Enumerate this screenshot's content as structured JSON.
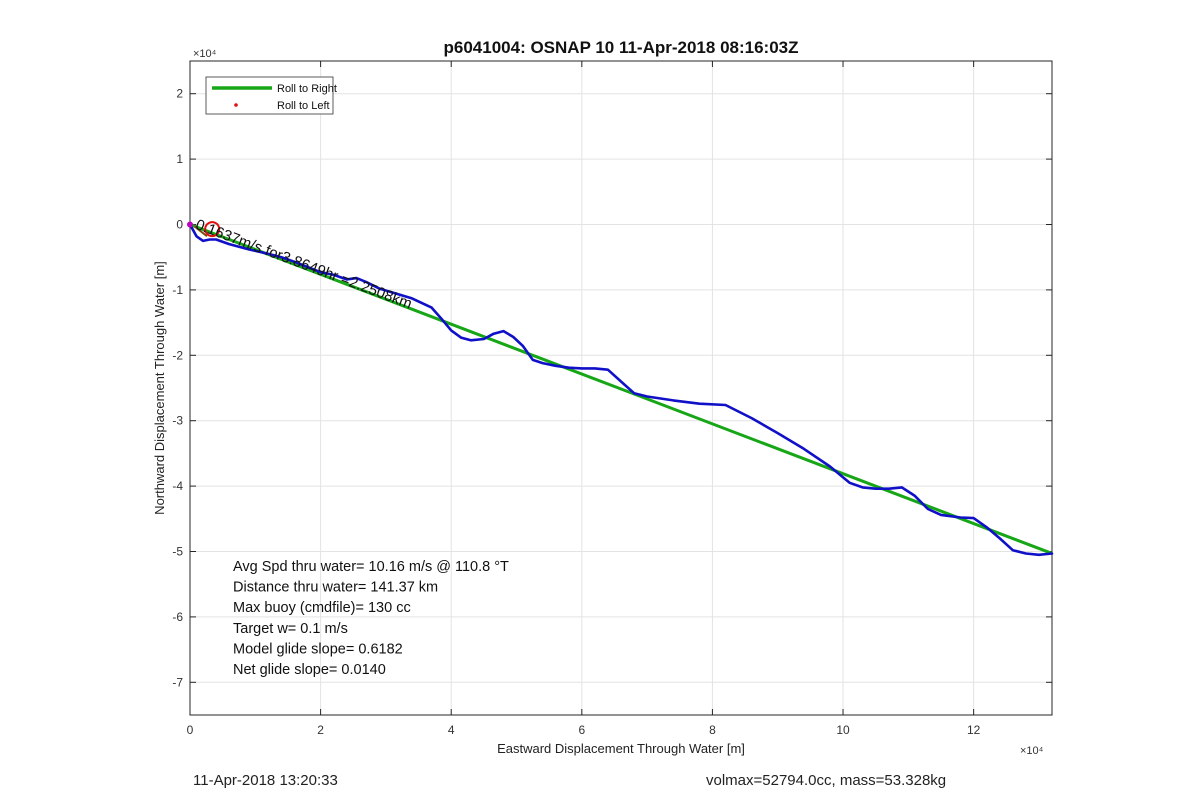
{
  "chart_data": {
    "type": "line",
    "title": "p6041004: OSNAP 10 11-Apr-2018 08:16:03Z",
    "xlabel": "Eastward Displacement Through Water [m]",
    "ylabel": "Northward Displacement Through Water [m]",
    "x_exponent": "×10⁴",
    "y_exponent": "×10⁴",
    "xlim": [
      0,
      132000
    ],
    "ylim": [
      -75000,
      25000
    ],
    "x_ticks": [
      0,
      20000,
      40000,
      60000,
      80000,
      100000,
      120000
    ],
    "x_tick_labels": [
      "0",
      "2",
      "4",
      "6",
      "8",
      "10",
      "12"
    ],
    "y_ticks": [
      20000,
      10000,
      0,
      -10000,
      -20000,
      -30000,
      -40000,
      -50000,
      -60000,
      -70000
    ],
    "y_tick_labels": [
      "2",
      "1",
      "0",
      "-1",
      "-2",
      "-3",
      "-4",
      "-5",
      "-6",
      "-7"
    ],
    "grid": true,
    "legend_position": "top-left",
    "legend": [
      {
        "label": "Roll to Right",
        "color": "#16a616",
        "style": "line"
      },
      {
        "label": "Roll to Left",
        "color": "#e01010",
        "style": "point"
      }
    ],
    "series": [
      {
        "name": "Roll to Right",
        "color": "#16a616",
        "x": [
          0,
          132000
        ],
        "y": [
          0,
          -50300
        ]
      },
      {
        "color": "#1010c8",
        "x": [
          0,
          1000,
          2000,
          3000,
          4000,
          6000,
          9000,
          12000,
          14000,
          16000,
          18000,
          20000,
          22000,
          24000,
          25500,
          27000,
          29000,
          31000,
          34000,
          37000,
          38500,
          40000,
          41500,
          43000,
          45000,
          46500,
          48000,
          49500,
          51000,
          52500,
          54000,
          56000,
          58000,
          60000,
          62000,
          64000,
          66000,
          68000,
          70000,
          74000,
          78000,
          82000,
          86000,
          90000,
          94000,
          98000,
          101000,
          103000,
          105000,
          107000,
          109000,
          111000,
          113000,
          115000,
          118000,
          120000,
          122000,
          124000,
          126000,
          128000,
          130000,
          132000
        ],
        "y": [
          0,
          -1800,
          -2500,
          -2300,
          -2300,
          -3000,
          -3800,
          -4500,
          -5000,
          -5700,
          -6500,
          -7300,
          -7700,
          -8400,
          -8200,
          -8800,
          -9800,
          -10400,
          -11300,
          -12700,
          -14400,
          -16200,
          -17300,
          -17700,
          -17500,
          -16700,
          -16300,
          -17200,
          -18600,
          -20700,
          -21200,
          -21600,
          -21900,
          -22000,
          -22000,
          -22200,
          -24000,
          -25800,
          -26300,
          -26900,
          -27400,
          -27600,
          -29600,
          -31900,
          -34300,
          -37000,
          -39500,
          -40200,
          -40400,
          -40400,
          -40200,
          -41500,
          -43500,
          -44400,
          -44800,
          -44900,
          -46300,
          -48000,
          -49800,
          -50300,
          -50500,
          -50300
        ]
      }
    ],
    "annotations": [
      {
        "text": "Avg Spd thru water= 10.16 m/s @ 110.8 °T"
      },
      {
        "text": "Distance thru water= 141.37 km"
      },
      {
        "text": "Max buoy (cmdfile)= 130 cc"
      },
      {
        "text": "Target w= 0.1 m/s"
      },
      {
        "text": "Model glide slope= 0.6182"
      },
      {
        "text": "Net glide slope= 0.0140"
      },
      {
        "text": "0.1637m/s for3.8649hr =2.2508km"
      }
    ]
  },
  "footer": {
    "datetime": "11-Apr-2018 13:20:33",
    "info": "volmax=52794.0cc, mass=53.328kg"
  }
}
